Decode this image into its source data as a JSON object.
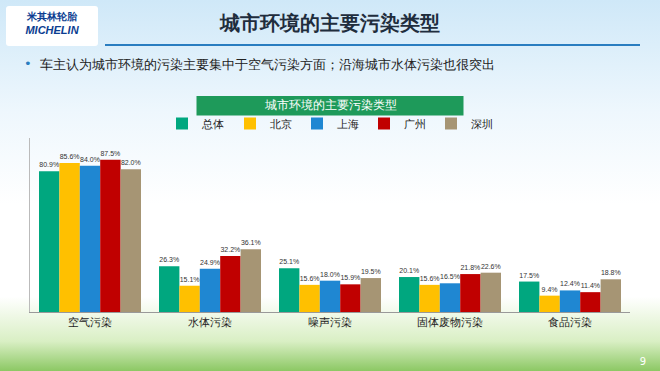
{
  "page": {
    "logo_cn": "米其林轮胎",
    "logo_en": "MICHELIN",
    "heading": "城市环境的主要污染类型",
    "bullet": "车主认为城市环境的污染主要集中于空气污染方面；沿海城市水体污染也很突出",
    "page_number": "9"
  },
  "chart_data": {
    "type": "bar",
    "title": "城市环境的主要污染类型",
    "categories": [
      "空气污染",
      "水体污染",
      "噪声污染",
      "固体废物污染",
      "食品污染"
    ],
    "series": [
      {
        "name": "总体",
        "color": "#00a77f",
        "values": [
          80.9,
          26.3,
          25.1,
          20.1,
          17.5
        ],
        "value_labels": [
          "80.9%",
          "26.3%",
          "25.1%",
          "20.1%",
          "17.5%"
        ]
      },
      {
        "name": "北京",
        "color": "#ffc000",
        "values": [
          85.6,
          15.1,
          15.6,
          15.6,
          9.4
        ],
        "value_labels": [
          "85.6%",
          "15.1%",
          "15.6%",
          "15.6%",
          "9.4%"
        ]
      },
      {
        "name": "上海",
        "color": "#1f87d2",
        "values": [
          84.0,
          24.9,
          18.0,
          16.5,
          12.4
        ],
        "value_labels": [
          "84.0%",
          "24.9%",
          "18.0%",
          "16.5%",
          "12.4%"
        ]
      },
      {
        "name": "广州",
        "color": "#c00000",
        "values": [
          87.5,
          32.2,
          15.9,
          21.8,
          11.4
        ],
        "value_labels": [
          "87.5%",
          "32.2%",
          "15.9%",
          "21.8%",
          "11.4%"
        ]
      },
      {
        "name": "深圳",
        "color": "#a69574",
        "values": [
          82.0,
          36.1,
          19.5,
          22.6,
          18.8
        ],
        "value_labels": [
          "82.0%",
          "36.1%",
          "19.5%",
          "22.6%",
          "18.8%"
        ]
      }
    ],
    "ylim": [
      0,
      100
    ],
    "grid": false,
    "legend": "top",
    "data_labels": true,
    "tick_labels": "x"
  }
}
